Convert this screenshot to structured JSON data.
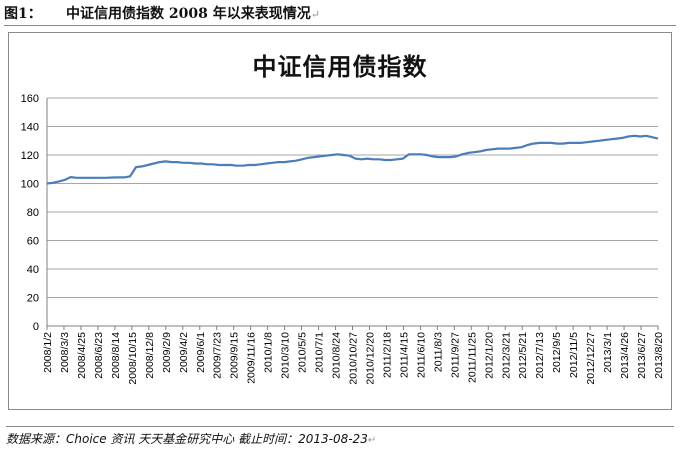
{
  "figure": {
    "label": "图1：",
    "caption": "中证信用债指数 2008 年以来表现情况",
    "caption_mark": "↵"
  },
  "source": {
    "text": "数据来源：Choice 资讯  天天基金研究中心    截止时间：2013-08-23",
    "mark": "↵"
  },
  "colors": {
    "line": "#4a7ebb",
    "axis": "#808080",
    "grid": "#a6a6a6"
  },
  "chart_data": {
    "type": "line",
    "title": "中证信用债指数",
    "ylim": [
      0,
      160
    ],
    "yticks": [
      0,
      20,
      40,
      60,
      80,
      100,
      120,
      140,
      160
    ],
    "grid": true,
    "legend": "none",
    "xtick_labels": [
      "2008/1/2",
      "2008/3/3",
      "2008/4/25",
      "2008/6/23",
      "2008/8/14",
      "2008/10/15",
      "2008/12/8",
      "2009/2/9",
      "2009/4/2",
      "2009/6/1",
      "2009/7/23",
      "2009/9/15",
      "2009/11/16",
      "2010/1/8",
      "2010/3/10",
      "2010/5/5",
      "2010/7/1",
      "2010/8/24",
      "2010/10/27",
      "2010/12/20",
      "2011/2/18",
      "2011/4/15",
      "2011/6/10",
      "2011/8/3",
      "2011/9/27",
      "2011/11/25",
      "2012/1/20",
      "2012/3/21",
      "2012/5/21",
      "2012/7/13",
      "2012/9/5",
      "2012/11/5",
      "2012/12/27",
      "2013/3/1",
      "2013/4/26",
      "2013/6/27",
      "2013/8/20"
    ],
    "series": [
      {
        "values": [
          100.0,
          100.5,
          101.5,
          102.5,
          104.5,
          104.0,
          104.0,
          104.0,
          104.0,
          104.0,
          104.0,
          104.2,
          104.3,
          104.3,
          105.0,
          111.5,
          112.0,
          113.0,
          114.0,
          115.0,
          115.5,
          115.0,
          115.0,
          114.5,
          114.5,
          114.0,
          114.0,
          113.5,
          113.5,
          113.0,
          113.0,
          113.0,
          112.5,
          112.5,
          113.0,
          113.0,
          113.5,
          114.0,
          114.5,
          115.0,
          115.0,
          115.5,
          116.0,
          117.0,
          118.0,
          118.5,
          119.0,
          119.5,
          120.0,
          120.5,
          120.0,
          119.5,
          117.5,
          117.0,
          117.5,
          117.0,
          117.0,
          116.5,
          116.5,
          117.0,
          117.5,
          120.5,
          120.5,
          120.5,
          120.0,
          119.0,
          118.5,
          118.5,
          118.5,
          119.0,
          120.5,
          121.5,
          122.0,
          122.5,
          123.5,
          124.0,
          124.5,
          124.5,
          124.5,
          125.0,
          125.5,
          127.0,
          128.0,
          128.5,
          128.5,
          128.5,
          128.0,
          128.0,
          128.5,
          128.5,
          128.5,
          129.0,
          129.5,
          130.0,
          130.5,
          131.0,
          131.5,
          132.0,
          133.0,
          133.5,
          133.0,
          133.5,
          132.5,
          131.5
        ]
      }
    ]
  }
}
